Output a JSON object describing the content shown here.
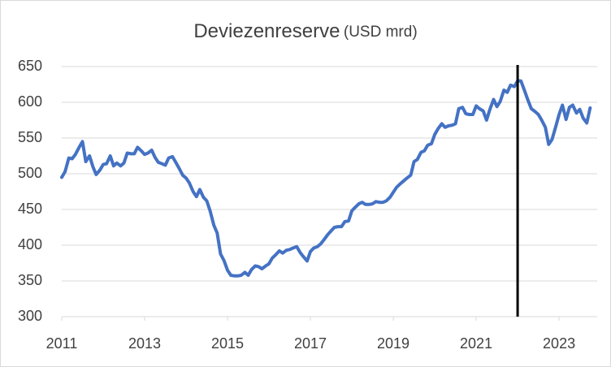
{
  "chart_data": {
    "type": "line",
    "title": "Deviezenreserve",
    "subtitle": "(USD mrd)",
    "x": [
      2011,
      2011.08,
      2011.17,
      2011.25,
      2011.33,
      2011.42,
      2011.5,
      2011.58,
      2011.67,
      2011.75,
      2011.83,
      2011.92,
      2012,
      2012.08,
      2012.17,
      2012.25,
      2012.33,
      2012.42,
      2012.5,
      2012.58,
      2012.67,
      2012.75,
      2012.83,
      2012.92,
      2013,
      2013.08,
      2013.17,
      2013.25,
      2013.33,
      2013.42,
      2013.5,
      2013.58,
      2013.67,
      2013.75,
      2013.83,
      2013.92,
      2014,
      2014.08,
      2014.17,
      2014.25,
      2014.33,
      2014.42,
      2014.5,
      2014.58,
      2014.67,
      2014.75,
      2014.83,
      2014.92,
      2015,
      2015.08,
      2015.17,
      2015.25,
      2015.33,
      2015.42,
      2015.5,
      2015.58,
      2015.67,
      2015.75,
      2015.83,
      2015.92,
      2016,
      2016.08,
      2016.17,
      2016.25,
      2016.33,
      2016.42,
      2016.5,
      2016.58,
      2016.67,
      2016.75,
      2016.83,
      2016.92,
      2017,
      2017.08,
      2017.17,
      2017.25,
      2017.33,
      2017.42,
      2017.5,
      2017.58,
      2017.67,
      2017.75,
      2017.83,
      2017.92,
      2018,
      2018.08,
      2018.17,
      2018.25,
      2018.33,
      2018.42,
      2018.5,
      2018.58,
      2018.67,
      2018.75,
      2018.83,
      2018.92,
      2019,
      2019.08,
      2019.17,
      2019.25,
      2019.33,
      2019.42,
      2019.5,
      2019.58,
      2019.67,
      2019.75,
      2019.83,
      2019.92,
      2020,
      2020.08,
      2020.17,
      2020.25,
      2020.33,
      2020.42,
      2020.5,
      2020.58,
      2020.67,
      2020.75,
      2020.83,
      2020.92,
      2021,
      2021.08,
      2021.17,
      2021.25,
      2021.33,
      2021.42,
      2021.5,
      2021.58,
      2021.67,
      2021.75,
      2021.83,
      2021.92,
      2022,
      2022.08,
      2022.17,
      2022.25,
      2022.33,
      2022.42,
      2022.5,
      2022.58,
      2022.67,
      2022.75,
      2022.83,
      2022.92,
      2023,
      2023.08,
      2023.17,
      2023.25,
      2023.33,
      2023.42,
      2023.5,
      2023.58,
      2023.67,
      2023.75
    ],
    "series": [
      {
        "name": "Deviezenreserve",
        "color": "#4472c4",
        "values": [
          495,
          503,
          522,
          521,
          527,
          537,
          545,
          517,
          525,
          510,
          499,
          505,
          513,
          514,
          525,
          511,
          515,
          511,
          515,
          529,
          528,
          528,
          537,
          532,
          527,
          529,
          533,
          523,
          516,
          514,
          512,
          522,
          524,
          516,
          508,
          498,
          494,
          487,
          475,
          468,
          478,
          467,
          462,
          448,
          428,
          417,
          388,
          378,
          365,
          358,
          357,
          357,
          358,
          362,
          358,
          366,
          371,
          370,
          367,
          371,
          374,
          382,
          387,
          392,
          389,
          393,
          394,
          396,
          398,
          390,
          384,
          378,
          391,
          396,
          398,
          402,
          408,
          415,
          420,
          425,
          426,
          426,
          433,
          434,
          448,
          453,
          458,
          460,
          457,
          457,
          458,
          461,
          460,
          460,
          462,
          467,
          474,
          481,
          486,
          490,
          494,
          498,
          517,
          520,
          530,
          532,
          540,
          542,
          555,
          563,
          570,
          565,
          567,
          568,
          570,
          591,
          593,
          584,
          583,
          583,
          595,
          591,
          588,
          575,
          590,
          604,
          594,
          601,
          617,
          614,
          624,
          622,
          630,
          630,
          616,
          603,
          591,
          587,
          583,
          575,
          565,
          541,
          548,
          566,
          583,
          596,
          576,
          593,
          596,
          585,
          590,
          578,
          571,
          592
        ]
      }
    ],
    "vline_x": 2022,
    "xlim": [
      2011,
      2023.92
    ],
    "xticks": [
      2011,
      2013,
      2015,
      2017,
      2019,
      2021,
      2023
    ],
    "ylim": [
      300,
      650
    ],
    "yticks": [
      300,
      350,
      400,
      450,
      500,
      550,
      600,
      650
    ],
    "grid": true
  }
}
